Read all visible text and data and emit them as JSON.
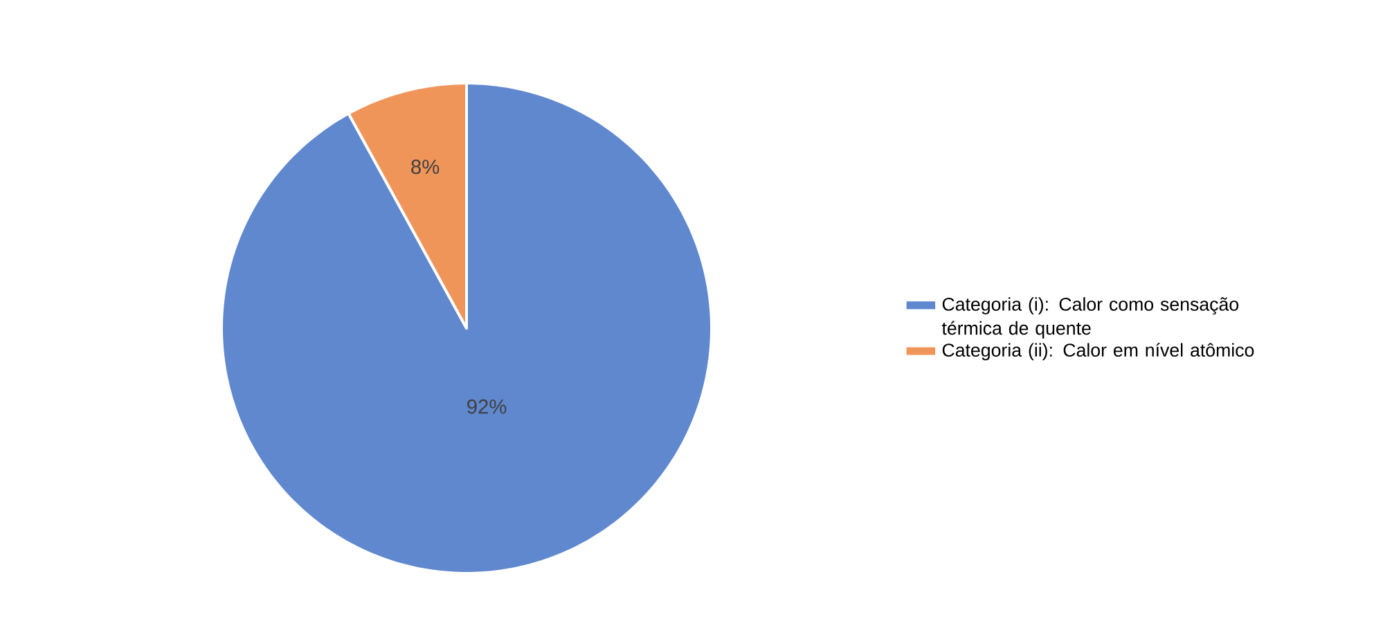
{
  "chart_data": {
    "type": "pie",
    "categories": [
      "Categoria (i): Calor como sensação térmica de quente",
      "Categoria (ii): Calor em nível atômico"
    ],
    "values": [
      92,
      8
    ],
    "colors": [
      "#5f88cf",
      "#f0955a"
    ],
    "value_labels": [
      "92%",
      "8%"
    ],
    "legend": "right"
  }
}
